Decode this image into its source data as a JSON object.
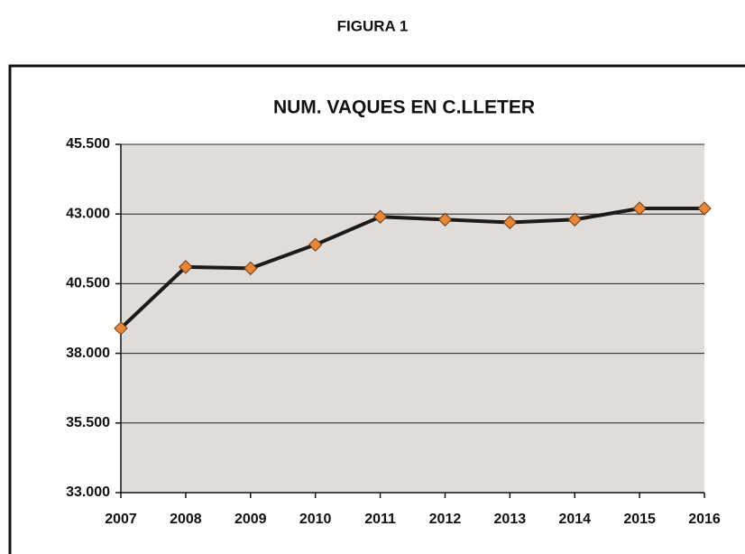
{
  "heading": "FIGURA 1",
  "chart_data": {
    "type": "line",
    "title": "NUM. VAQUES EN C.LLETER",
    "x": [
      2007,
      2008,
      2009,
      2010,
      2011,
      2012,
      2013,
      2014,
      2015,
      2016
    ],
    "xlim": [
      2007,
      2016
    ],
    "xticks": [
      2007,
      2008,
      2009,
      2010,
      2011,
      2012,
      2013,
      2014,
      2015,
      2016
    ],
    "series": [
      {
        "color": "#1a1a1a",
        "marker_color": "#e8873a",
        "values": [
          38900,
          41100,
          41050,
          41900,
          42900,
          42800,
          42700,
          42800,
          43200,
          43200
        ]
      }
    ],
    "ylim": [
      33000,
      45500
    ],
    "yticks": [
      {
        "value": 33000,
        "label": "33.000"
      },
      {
        "value": 35500,
        "label": "35.500"
      },
      {
        "value": 38000,
        "label": "38.000"
      },
      {
        "value": 40500,
        "label": "40.500"
      },
      {
        "value": 43000,
        "label": "43.000"
      },
      {
        "value": 45500,
        "label": "45.500"
      }
    ],
    "grid": true
  }
}
